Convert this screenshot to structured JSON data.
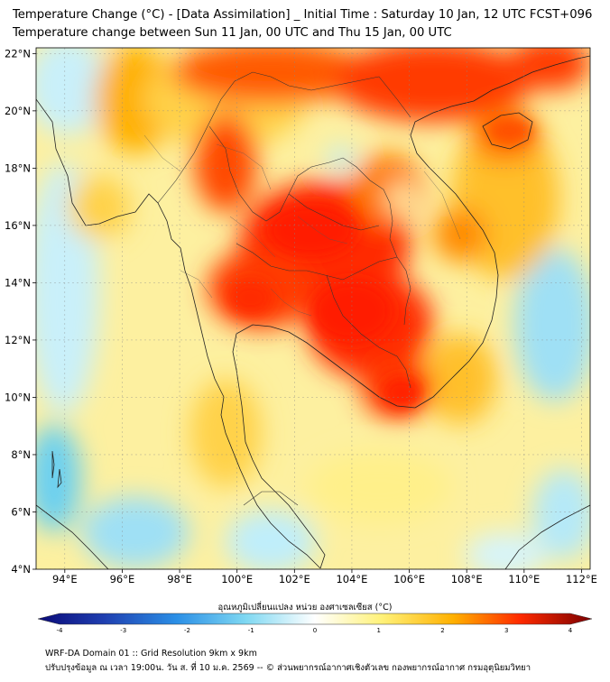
{
  "title": {
    "line1": "Temperature Change (°C) - [Data Assimilation] _ Initial Time : Saturday 10 Jan, 12 UTC FCST+096",
    "line2": "Temperature change between Sun 11 Jan, 00 UTC and Thu 15 Jan, 00 UTC"
  },
  "map": {
    "lon_ticks": [
      "94°E",
      "96°E",
      "98°E",
      "100°E",
      "102°E",
      "104°E",
      "106°E",
      "108°E",
      "110°E",
      "112°E"
    ],
    "lat_ticks": [
      "22°N",
      "20°N",
      "18°N",
      "16°N",
      "14°N",
      "12°N",
      "10°N",
      "8°N",
      "6°N",
      "4°N"
    ],
    "lon_range": [
      93,
      112.3
    ],
    "lat_range": [
      4,
      22.2
    ]
  },
  "colorbar": {
    "label": "อุณหภูมิเปลี่ยนแปลง หน่วย องศาเซลเซียส (°C)",
    "tick_labels": [
      "-4",
      "-3",
      "-2",
      "-1",
      "0",
      "1",
      "2",
      "3",
      "4"
    ],
    "range": [
      -4,
      4
    ],
    "colors": {
      "cold_end": "#0a0a78",
      "cold_mid": "#2b6cd6",
      "cool": "#7fd8f2",
      "neutral": "#ffffff",
      "warm_light": "#ffef6a",
      "warm": "#ffb000",
      "hot": "#ff2a00",
      "hot_end": "#7a0000"
    }
  },
  "footer": {
    "line1": "WRF-DA Domain 01 :: Grid Resolution 9km x 9km",
    "line2": "ปรับปรุงข้อมูล ณ เวลา 19:00น. วัน ส. ที่ 10 ม.ค. 2569 -- © ส่วนพยากรณ์อากาศเชิงตัวเลข กองพยากรณ์อากาศ กรมอุตุนิยมวิทยา"
  }
}
